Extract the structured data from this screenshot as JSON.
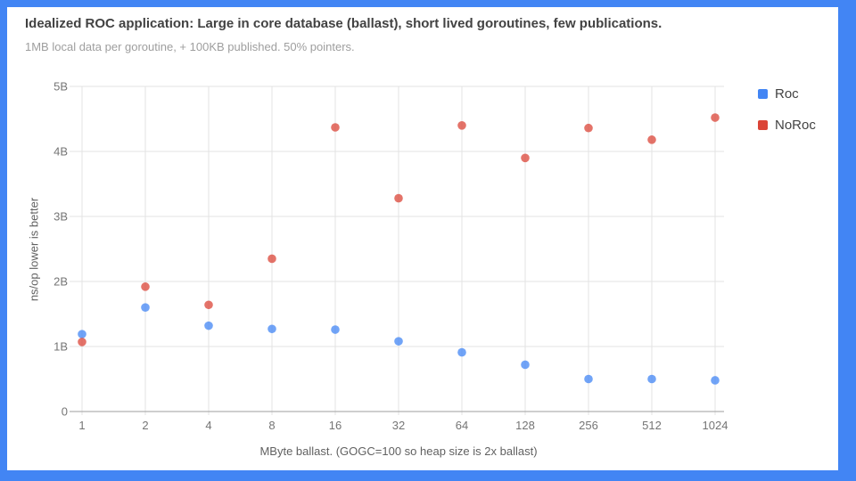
{
  "frame": {
    "border_color": "#4285f4",
    "card_background": "#ffffff"
  },
  "chart_data": {
    "type": "scatter",
    "title": "Idealized ROC application: Large in core database (ballast), short lived goroutines, few publications.",
    "subtitle": "1MB local data per goroutine, + 100KB published. 50% pointers.",
    "xlabel": "MByte ballast. (GOGC=100 so heap size is 2x ballast)",
    "ylabel": "ns/op lower is better",
    "categories": [
      1,
      2,
      4,
      8,
      16,
      32,
      64,
      128,
      256,
      512,
      1024
    ],
    "x_scale": "log2-categorical",
    "y_axis": {
      "min": 0,
      "max": 5000000000,
      "unit": "ns/op",
      "tick_labels": [
        "0",
        "1B",
        "2B",
        "3B",
        "4B",
        "5B"
      ]
    },
    "series": [
      {
        "name": "Roc",
        "color": "#4285f4",
        "values_billions": [
          1.19,
          1.6,
          1.32,
          1.27,
          1.26,
          1.08,
          0.91,
          0.72,
          0.5,
          0.5,
          0.48
        ]
      },
      {
        "name": "NoRoc",
        "color": "#db4437",
        "values_billions": [
          1.07,
          1.92,
          1.64,
          2.35,
          4.37,
          3.28,
          4.4,
          3.9,
          4.36,
          4.18,
          4.52
        ]
      }
    ],
    "legend_position": "right",
    "grid": true,
    "point_opacity": 0.75,
    "colors": {
      "gridline": "#e3e3e3",
      "axis_line": "#9e9e9e",
      "tick_label": "#757575"
    }
  }
}
